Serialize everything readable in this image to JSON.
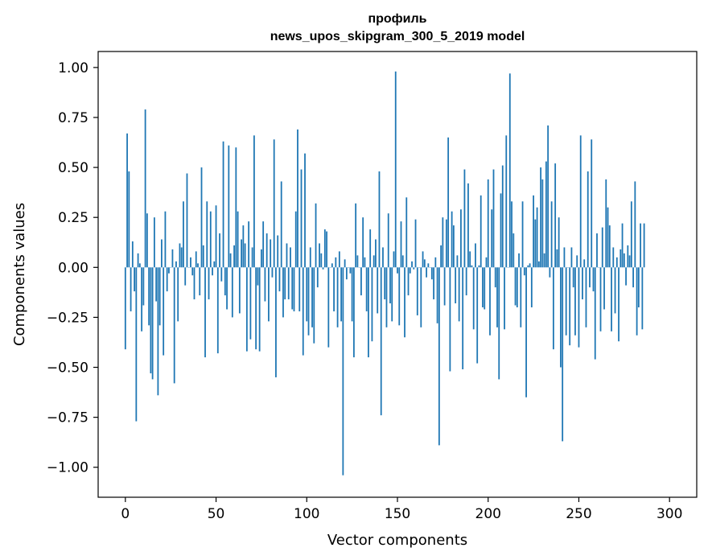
{
  "chart_data": {
    "type": "bar",
    "title_line1": "профиль",
    "title_line2": "news_upos_skipgram_300_5_2019 model",
    "xlabel": "Vector components",
    "ylabel": "Components values",
    "xlim": [
      -15,
      315
    ],
    "ylim": [
      -1.15,
      1.08
    ],
    "xticks": [
      "0",
      "50",
      "100",
      "150",
      "200",
      "250",
      "300"
    ],
    "xtick_values": [
      0,
      50,
      100,
      150,
      200,
      250,
      300
    ],
    "yticks": [
      "1.00",
      "0.75",
      "0.50",
      "0.25",
      "0.00",
      "−0.25",
      "−0.50",
      "−0.75",
      "−1.00"
    ],
    "ytick_values": [
      1.0,
      0.75,
      0.5,
      0.25,
      0.0,
      -0.25,
      -0.5,
      -0.75,
      -1.0
    ],
    "grid": false,
    "bar_color": "#1f77b4",
    "values": [
      -0.41,
      0.67,
      0.48,
      -0.22,
      0.13,
      -0.12,
      -0.77,
      0.07,
      0.02,
      -0.32,
      -0.19,
      0.79,
      0.27,
      -0.29,
      -0.53,
      -0.56,
      0.25,
      -0.17,
      -0.64,
      -0.29,
      0.14,
      -0.44,
      0.28,
      -0.12,
      -0.03,
      0.0,
      0.09,
      -0.58,
      0.03,
      -0.27,
      0.12,
      0.1,
      0.33,
      -0.09,
      0.47,
      0.0,
      0.05,
      -0.04,
      -0.16,
      0.08,
      0.02,
      -0.14,
      0.5,
      0.11,
      -0.45,
      0.33,
      -0.16,
      0.28,
      -0.04,
      0.03,
      0.31,
      -0.43,
      0.17,
      -0.07,
      0.63,
      -0.14,
      -0.21,
      0.61,
      0.07,
      -0.25,
      0.11,
      0.6,
      0.28,
      -0.23,
      0.14,
      0.21,
      0.12,
      -0.42,
      0.23,
      -0.36,
      0.1,
      0.66,
      -0.41,
      -0.09,
      -0.42,
      0.09,
      0.23,
      -0.17,
      0.17,
      -0.27,
      0.14,
      -0.05,
      0.64,
      -0.55,
      0.16,
      -0.12,
      0.43,
      -0.25,
      -0.16,
      0.12,
      -0.16,
      0.1,
      -0.21,
      -0.22,
      0.28,
      0.69,
      -0.22,
      0.49,
      -0.44,
      0.57,
      -0.27,
      -0.34,
      0.1,
      -0.3,
      -0.38,
      0.32,
      -0.1,
      0.12,
      0.07,
      -0.01,
      0.19,
      0.18,
      -0.4,
      0.0,
      0.02,
      -0.22,
      0.05,
      -0.3,
      0.08,
      -0.27,
      -1.04,
      0.04,
      -0.06,
      0.0,
      -0.03,
      -0.27,
      -0.45,
      0.32,
      0.06,
      0.0,
      -0.14,
      0.25,
      0.05,
      -0.22,
      -0.45,
      0.19,
      -0.37,
      0.06,
      0.14,
      -0.23,
      0.48,
      -0.74,
      0.1,
      -0.16,
      -0.3,
      0.27,
      -0.18,
      -0.27,
      0.08,
      0.98,
      -0.03,
      -0.29,
      0.23,
      0.06,
      -0.35,
      0.35,
      -0.14,
      -0.03,
      0.03,
      -0.01,
      0.24,
      -0.24,
      0.0,
      -0.3,
      0.08,
      0.04,
      -0.05,
      0.02,
      0.0,
      -0.06,
      -0.16,
      0.05,
      -0.28,
      -0.89,
      0.11,
      0.25,
      -0.19,
      0.24,
      0.65,
      -0.52,
      0.28,
      0.21,
      -0.18,
      0.06,
      -0.27,
      0.29,
      -0.51,
      0.49,
      -0.14,
      0.42,
      0.08,
      0.01,
      -0.31,
      0.12,
      -0.48,
      0.01,
      0.36,
      -0.2,
      -0.21,
      0.05,
      0.44,
      -0.34,
      0.29,
      0.49,
      -0.1,
      -0.3,
      -0.56,
      0.37,
      0.51,
      -0.31,
      0.66,
      0.0,
      0.97,
      0.33,
      0.17,
      -0.19,
      -0.2,
      0.07,
      -0.3,
      0.33,
      -0.04,
      -0.65,
      0.01,
      0.02,
      -0.2,
      0.36,
      0.24,
      0.3,
      0.03,
      0.5,
      0.44,
      0.07,
      0.53,
      0.71,
      -0.05,
      0.33,
      -0.41,
      0.52,
      0.09,
      0.25,
      -0.5,
      -0.87,
      0.1,
      -0.34,
      0.0,
      -0.39,
      0.1,
      -0.1,
      -0.34,
      0.06,
      -0.4,
      0.66,
      -0.16,
      0.04,
      -0.3,
      0.48,
      -0.1,
      0.64,
      -0.12,
      -0.46,
      0.17,
      0.0,
      -0.32,
      0.2,
      -0.21,
      0.44,
      0.3,
      0.21,
      -0.32,
      0.1,
      -0.23,
      0.05,
      -0.37,
      0.09,
      0.22,
      0.07,
      -0.09,
      0.11,
      0.06,
      0.33,
      -0.1,
      0.43,
      -0.34,
      -0.2,
      0.22,
      -0.31,
      0.22
    ]
  }
}
